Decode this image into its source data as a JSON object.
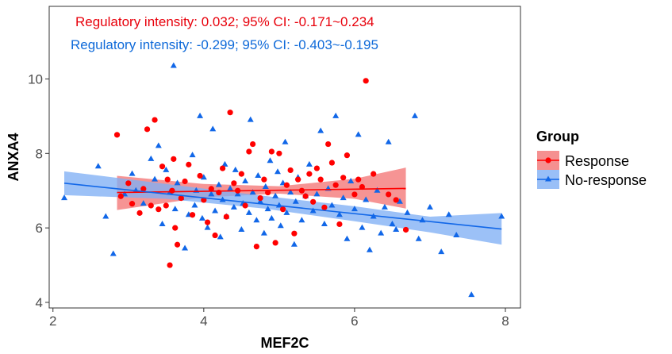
{
  "chart_data": {
    "type": "scatter",
    "xlabel": "MEF2C",
    "ylabel": "ANXA4",
    "xlim": [
      1.95,
      8.2
    ],
    "ylim": [
      3.85,
      11.95
    ],
    "xticks": [
      2,
      4,
      6,
      8
    ],
    "yticks": [
      4,
      6,
      8,
      10
    ],
    "grid": false,
    "legend_position": "right",
    "legend_title": "Group",
    "annotations": [
      {
        "text": "Regulatory intensity: 0.032; 95% CI: -0.171~0.234",
        "color": "#e8000b"
      },
      {
        "text": "Regulatory intensity: -0.299; 95% CI: -0.403~-0.195",
        "color": "#0f6ad9"
      }
    ],
    "series": [
      {
        "name": "Response",
        "marker": "circle",
        "color": "#ff0000",
        "band_color": "#f26b6b",
        "fit": {
          "x": [
            2.85,
            6.68
          ],
          "y": [
            6.95,
            7.06
          ]
        },
        "band": {
          "x": [
            2.85,
            4.0,
            5.0,
            6.0,
            6.68
          ],
          "lower": [
            6.48,
            6.82,
            6.92,
            6.78,
            6.52
          ],
          "upper": [
            7.4,
            7.18,
            7.12,
            7.32,
            7.62
          ]
        },
        "points": [
          [
            2.85,
            8.5
          ],
          [
            2.9,
            6.85
          ],
          [
            3.0,
            7.2
          ],
          [
            3.05,
            6.65
          ],
          [
            3.15,
            6.4
          ],
          [
            3.2,
            7.05
          ],
          [
            3.25,
            8.65
          ],
          [
            3.3,
            6.6
          ],
          [
            3.35,
            8.9
          ],
          [
            3.4,
            6.5
          ],
          [
            3.45,
            7.65
          ],
          [
            3.5,
            6.6
          ],
          [
            3.52,
            7.3
          ],
          [
            3.55,
            5.0
          ],
          [
            3.58,
            7.0
          ],
          [
            3.6,
            7.85
          ],
          [
            3.62,
            6.0
          ],
          [
            3.65,
            5.55
          ],
          [
            3.7,
            6.8
          ],
          [
            3.75,
            7.25
          ],
          [
            3.8,
            7.7
          ],
          [
            3.85,
            6.35
          ],
          [
            3.95,
            7.4
          ],
          [
            4.0,
            6.75
          ],
          [
            4.05,
            6.15
          ],
          [
            4.1,
            7.05
          ],
          [
            4.15,
            5.8
          ],
          [
            4.2,
            6.95
          ],
          [
            4.25,
            7.6
          ],
          [
            4.3,
            6.3
          ],
          [
            4.35,
            9.1
          ],
          [
            4.4,
            7.2
          ],
          [
            4.45,
            7.0
          ],
          [
            4.5,
            7.45
          ],
          [
            4.55,
            6.6
          ],
          [
            4.6,
            8.05
          ],
          [
            4.65,
            8.25
          ],
          [
            4.7,
            5.5
          ],
          [
            4.75,
            6.8
          ],
          [
            4.8,
            7.3
          ],
          [
            4.85,
            6.95
          ],
          [
            4.9,
            8.05
          ],
          [
            4.95,
            5.6
          ],
          [
            5.0,
            8.0
          ],
          [
            5.05,
            6.5
          ],
          [
            5.1,
            7.15
          ],
          [
            5.15,
            7.55
          ],
          [
            5.2,
            5.85
          ],
          [
            5.25,
            7.3
          ],
          [
            5.3,
            7.0
          ],
          [
            5.35,
            6.85
          ],
          [
            5.4,
            7.45
          ],
          [
            5.45,
            6.7
          ],
          [
            5.5,
            7.6
          ],
          [
            5.55,
            7.3
          ],
          [
            5.6,
            6.55
          ],
          [
            5.65,
            8.25
          ],
          [
            5.7,
            7.75
          ],
          [
            5.75,
            7.15
          ],
          [
            5.8,
            6.1
          ],
          [
            5.85,
            7.35
          ],
          [
            5.9,
            7.95
          ],
          [
            6.0,
            6.9
          ],
          [
            6.05,
            7.3
          ],
          [
            6.1,
            7.1
          ],
          [
            6.15,
            9.95
          ],
          [
            6.25,
            7.45
          ],
          [
            6.45,
            6.9
          ],
          [
            6.55,
            6.75
          ],
          [
            6.68,
            5.95
          ]
        ]
      },
      {
        "name": "No-response",
        "marker": "triangle",
        "color": "#1167e8",
        "band_color": "#80aff5",
        "fit": {
          "x": [
            2.15,
            7.95
          ],
          "y": [
            7.2,
            5.97
          ]
        },
        "band": {
          "x": [
            2.15,
            3.5,
            4.8,
            6.0,
            7.0,
            7.95
          ],
          "lower": [
            6.88,
            6.78,
            6.52,
            6.18,
            5.88,
            5.55
          ],
          "upper": [
            7.52,
            7.18,
            6.86,
            6.58,
            6.3,
            6.4
          ]
        },
        "points": [
          [
            2.15,
            6.8
          ],
          [
            2.6,
            7.65
          ],
          [
            2.7,
            6.3
          ],
          [
            2.8,
            5.3
          ],
          [
            2.95,
            6.9
          ],
          [
            3.05,
            7.45
          ],
          [
            3.1,
            7.0
          ],
          [
            3.2,
            6.65
          ],
          [
            3.3,
            7.85
          ],
          [
            3.35,
            7.3
          ],
          [
            3.4,
            8.2
          ],
          [
            3.45,
            6.1
          ],
          [
            3.5,
            7.55
          ],
          [
            3.55,
            6.95
          ],
          [
            3.6,
            10.35
          ],
          [
            3.62,
            6.5
          ],
          [
            3.65,
            7.2
          ],
          [
            3.7,
            6.8
          ],
          [
            3.75,
            5.45
          ],
          [
            3.8,
            6.35
          ],
          [
            3.85,
            7.95
          ],
          [
            3.88,
            6.6
          ],
          [
            3.9,
            7.0
          ],
          [
            3.95,
            9.0
          ],
          [
            3.98,
            6.25
          ],
          [
            4.0,
            7.35
          ],
          [
            4.05,
            6.0
          ],
          [
            4.1,
            6.9
          ],
          [
            4.12,
            8.65
          ],
          [
            4.15,
            6.45
          ],
          [
            4.2,
            7.15
          ],
          [
            4.22,
            5.75
          ],
          [
            4.25,
            6.75
          ],
          [
            4.28,
            7.7
          ],
          [
            4.3,
            6.3
          ],
          [
            4.35,
            7.05
          ],
          [
            4.4,
            6.55
          ],
          [
            4.42,
            7.55
          ],
          [
            4.45,
            6.9
          ],
          [
            4.5,
            5.95
          ],
          [
            4.52,
            6.65
          ],
          [
            4.55,
            7.25
          ],
          [
            4.6,
            6.4
          ],
          [
            4.62,
            8.9
          ],
          [
            4.65,
            6.95
          ],
          [
            4.7,
            6.2
          ],
          [
            4.72,
            7.4
          ],
          [
            4.75,
            6.7
          ],
          [
            4.8,
            5.85
          ],
          [
            4.82,
            7.1
          ],
          [
            4.85,
            6.5
          ],
          [
            4.88,
            7.8
          ],
          [
            4.9,
            6.25
          ],
          [
            4.95,
            6.85
          ],
          [
            4.98,
            7.5
          ],
          [
            5.0,
            6.6
          ],
          [
            5.02,
            6.05
          ],
          [
            5.05,
            7.2
          ],
          [
            5.08,
            8.3
          ],
          [
            5.1,
            6.4
          ],
          [
            5.15,
            6.95
          ],
          [
            5.2,
            5.55
          ],
          [
            5.22,
            6.7
          ],
          [
            5.25,
            7.35
          ],
          [
            5.3,
            6.2
          ],
          [
            5.35,
            6.85
          ],
          [
            5.4,
            7.7
          ],
          [
            5.45,
            6.45
          ],
          [
            5.5,
            6.9
          ],
          [
            5.55,
            8.6
          ],
          [
            5.6,
            6.1
          ],
          [
            5.65,
            7.05
          ],
          [
            5.7,
            6.6
          ],
          [
            5.75,
            9.0
          ],
          [
            5.8,
            6.35
          ],
          [
            5.85,
            6.8
          ],
          [
            5.9,
            5.7
          ],
          [
            5.95,
            7.25
          ],
          [
            6.0,
            6.5
          ],
          [
            6.05,
            8.5
          ],
          [
            6.1,
            6.0
          ],
          [
            6.15,
            6.75
          ],
          [
            6.2,
            5.4
          ],
          [
            6.25,
            6.3
          ],
          [
            6.3,
            7.0
          ],
          [
            6.35,
            5.85
          ],
          [
            6.4,
            6.55
          ],
          [
            6.45,
            8.3
          ],
          [
            6.5,
            6.1
          ],
          [
            6.55,
            5.95
          ],
          [
            6.6,
            6.7
          ],
          [
            6.7,
            6.4
          ],
          [
            6.8,
            9.0
          ],
          [
            6.85,
            5.7
          ],
          [
            6.9,
            6.2
          ],
          [
            7.0,
            6.55
          ],
          [
            7.15,
            5.35
          ],
          [
            7.25,
            6.35
          ],
          [
            7.35,
            5.8
          ],
          [
            7.55,
            4.2
          ],
          [
            7.95,
            6.3
          ]
        ]
      }
    ]
  }
}
